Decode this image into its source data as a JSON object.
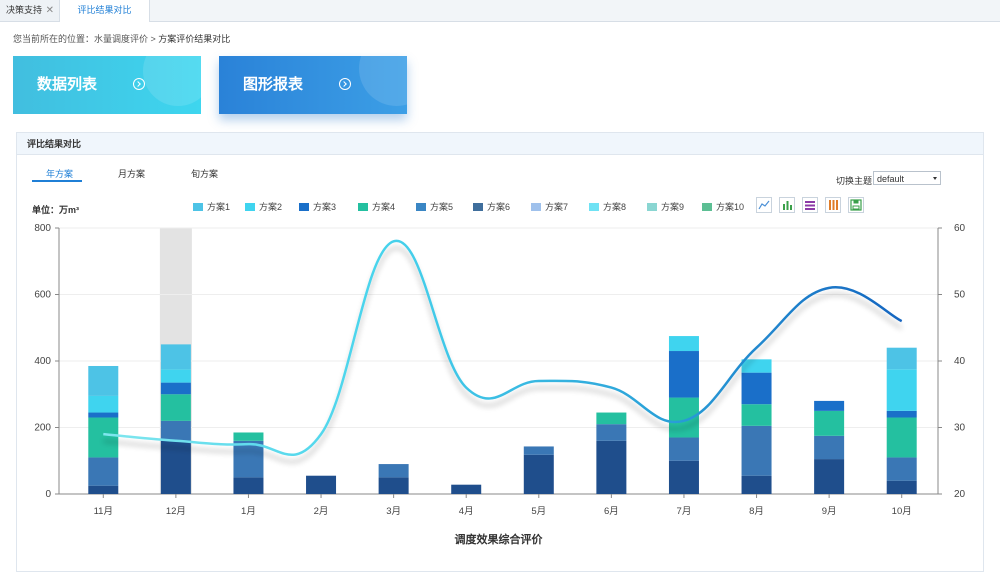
{
  "tabs": [
    {
      "label": "决策支持",
      "closable": true
    },
    {
      "label": "评比结果对比",
      "active": true
    }
  ],
  "breadcrumb": {
    "prefix": "您当前所在的位置：",
    "path1": "水量调度评价",
    "sep": " > ",
    "current": "方案评价结果对比"
  },
  "buttons": {
    "data_list": "数据列表",
    "chart_report": "图形报表"
  },
  "panel": {
    "title": "评比结果对比",
    "subtabs": [
      "年方案",
      "月方案",
      "旬方案"
    ],
    "active_subtab": 0,
    "theme_label": "切换主题",
    "theme_value": "default",
    "unit_label": "单位：万m³"
  },
  "chart_data": {
    "type": "bar",
    "stacked": true,
    "title": "",
    "xlabel": "调度效果综合评价",
    "ylabel": "",
    "ylim": [
      0,
      800
    ],
    "y2lim": [
      20,
      60
    ],
    "yticks": [
      0,
      200,
      400,
      600,
      800
    ],
    "y2ticks": [
      20,
      30,
      40,
      50,
      60
    ],
    "grid": true,
    "legend_position": "top",
    "highlight_category": "12月",
    "categories": [
      "11月",
      "12月",
      "1月",
      "2月",
      "3月",
      "4月",
      "5月",
      "6月",
      "7月",
      "8月",
      "9月",
      "10月"
    ],
    "series": [
      {
        "name": "方案1",
        "color": "#4dc3e6",
        "values": [
          0,
          0,
          0,
          0,
          0,
          0,
          0,
          0,
          0,
          0,
          0,
          0
        ]
      },
      {
        "name": "方案2",
        "color": "#3fd4ef",
        "values": [
          0,
          0,
          0,
          0,
          0,
          0,
          0,
          0,
          0,
          0,
          0,
          0
        ]
      },
      {
        "name": "方案3",
        "color": "#1a6fc9",
        "values": [
          0,
          0,
          0,
          0,
          0,
          0,
          0,
          0,
          0,
          0,
          0,
          0
        ]
      },
      {
        "name": "方案4",
        "color": "#24c0a0",
        "values": [
          0,
          0,
          0,
          0,
          0,
          0,
          0,
          0,
          0,
          0,
          0,
          0
        ]
      },
      {
        "name": "方案5",
        "color": "#3a86c4",
        "values": [
          0,
          0,
          0,
          0,
          0,
          0,
          0,
          0,
          0,
          0,
          0,
          0
        ]
      },
      {
        "name": "方案6",
        "color": "#3f6e9c",
        "values": [
          0,
          0,
          0,
          0,
          0,
          0,
          0,
          0,
          0,
          0,
          0,
          0
        ]
      },
      {
        "name": "方案7",
        "color": "#9fc1ec",
        "values": [
          0,
          0,
          0,
          0,
          0,
          0,
          0,
          0,
          0,
          0,
          0,
          0
        ]
      },
      {
        "name": "方案8",
        "color": "#6fe2f4",
        "values": [
          0,
          0,
          0,
          0,
          0,
          0,
          0,
          0,
          0,
          0,
          0,
          0
        ]
      },
      {
        "name": "方案9",
        "color": "#8ad6d2",
        "values": [
          0,
          0,
          0,
          0,
          0,
          0,
          0,
          0,
          0,
          0,
          0,
          0
        ]
      },
      {
        "name": "方案10",
        "color": "#5cbf94",
        "values": [
          0,
          0,
          0,
          0,
          0,
          0,
          0,
          0,
          0,
          0,
          0,
          0
        ]
      }
    ],
    "stack_segments": [
      [
        {
          "c": "#1f4e8c",
          "v": 25
        },
        {
          "c": "#3a77b5",
          "v": 85
        },
        {
          "c": "#24c0a0",
          "v": 120
        },
        {
          "c": "#1a6fc9",
          "v": 15
        },
        {
          "c": "#3fd4ef",
          "v": 50
        },
        {
          "c": "#4dc3e6",
          "v": 90
        }
      ],
      [
        {
          "c": "#1f4e8c",
          "v": 160
        },
        {
          "c": "#3a77b5",
          "v": 60
        },
        {
          "c": "#24c0a0",
          "v": 80
        },
        {
          "c": "#1a6fc9",
          "v": 35
        },
        {
          "c": "#3fd4ef",
          "v": 40
        },
        {
          "c": "#4dc3e6",
          "v": 75
        }
      ],
      [
        {
          "c": "#1f4e8c",
          "v": 50
        },
        {
          "c": "#3a77b5",
          "v": 110
        },
        {
          "c": "#24c0a0",
          "v": 25
        }
      ],
      [
        {
          "c": "#1f4e8c",
          "v": 55
        }
      ],
      [
        {
          "c": "#1f4e8c",
          "v": 50
        },
        {
          "c": "#3a77b5",
          "v": 40
        }
      ],
      [
        {
          "c": "#1f4e8c",
          "v": 28
        }
      ],
      [
        {
          "c": "#1f4e8c",
          "v": 118
        },
        {
          "c": "#3a77b5",
          "v": 25
        }
      ],
      [
        {
          "c": "#1f4e8c",
          "v": 160
        },
        {
          "c": "#3a77b5",
          "v": 50
        },
        {
          "c": "#24c0a0",
          "v": 35
        }
      ],
      [
        {
          "c": "#1f4e8c",
          "v": 100
        },
        {
          "c": "#3a77b5",
          "v": 70
        },
        {
          "c": "#24c0a0",
          "v": 120
        },
        {
          "c": "#1a6fc9",
          "v": 140
        },
        {
          "c": "#3fd4ef",
          "v": 45
        }
      ],
      [
        {
          "c": "#1f4e8c",
          "v": 55
        },
        {
          "c": "#3a77b5",
          "v": 150
        },
        {
          "c": "#24c0a0",
          "v": 65
        },
        {
          "c": "#1a6fc9",
          "v": 95
        },
        {
          "c": "#3fd4ef",
          "v": 40
        }
      ],
      [
        {
          "c": "#1f4e8c",
          "v": 105
        },
        {
          "c": "#3a77b5",
          "v": 70
        },
        {
          "c": "#24c0a0",
          "v": 75
        },
        {
          "c": "#1a6fc9",
          "v": 30
        }
      ],
      [
        {
          "c": "#1f4e8c",
          "v": 40
        },
        {
          "c": "#3a77b5",
          "v": 70
        },
        {
          "c": "#24c0a0",
          "v": 120
        },
        {
          "c": "#1a6fc9",
          "v": 20
        },
        {
          "c": "#3fd4ef",
          "v": 125
        },
        {
          "c": "#4dc3e6",
          "v": 65
        }
      ]
    ],
    "line": {
      "axis": "right",
      "values": [
        29,
        28,
        27.5,
        29,
        58,
        36,
        37,
        36,
        31,
        42,
        51,
        46
      ]
    }
  }
}
